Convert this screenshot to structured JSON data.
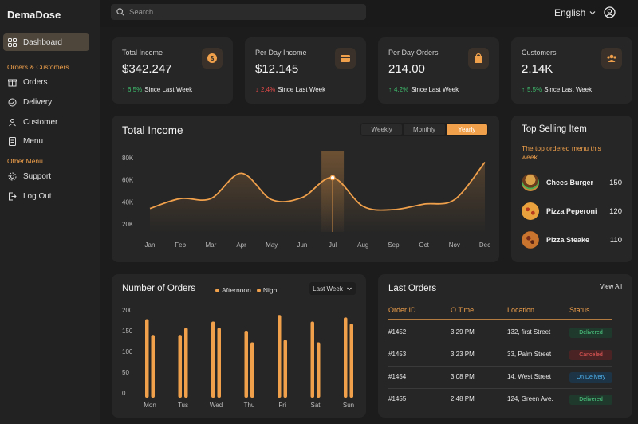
{
  "app": {
    "name": "DemaDose"
  },
  "sidebar": {
    "items": [
      {
        "label": "Dashboard",
        "icon": "grid-icon",
        "active": true
      },
      {
        "label": "Orders",
        "icon": "gift-box-icon"
      },
      {
        "label": "Delivery",
        "icon": "truck-icon"
      },
      {
        "label": "Customer",
        "icon": "users-icon"
      },
      {
        "label": "Menu",
        "icon": "document-icon"
      },
      {
        "label": "Support",
        "icon": "gear-icon"
      },
      {
        "label": "Log Out",
        "icon": "logout-icon"
      }
    ],
    "sections": {
      "orders_customers": "Orders & Customers",
      "other_menu": "Other Menu"
    }
  },
  "topbar": {
    "search_placeholder": "Search . . .",
    "language": "English"
  },
  "stats": [
    {
      "title": "Total Income",
      "value": "$342.247",
      "pct": "6.5%",
      "direction": "up",
      "since": "Since Last Week",
      "icon": "coin-icon"
    },
    {
      "title": "Per Day Income",
      "value": "$12.145",
      "pct": "2.4%",
      "direction": "down",
      "since": "Since Last Week",
      "icon": "wallet-icon"
    },
    {
      "title": "Per Day Orders",
      "value": "214.00",
      "pct": "4.2%",
      "direction": "up",
      "since": "Since Last Week",
      "icon": "shopping-bag-icon"
    },
    {
      "title": "Customers",
      "value": "2.14K",
      "pct": "5.5%",
      "direction": "up",
      "since": "Since Last Week",
      "icon": "users-icon"
    }
  ],
  "total_income": {
    "title": "Total Income",
    "tabs": [
      "Weekly",
      "Monthly",
      "Yearly"
    ],
    "active_tab": "Yearly"
  },
  "top_selling": {
    "title": "Top Selling Item",
    "subtitle": "The top ordered menu this week",
    "items": [
      {
        "name": "Chees Burger",
        "count": "150",
        "icon": "burger-icon"
      },
      {
        "name": "Pizza Peperoni",
        "count": "120",
        "icon": "pizza-icon"
      },
      {
        "name": "Pizza Steake",
        "count": "110",
        "icon": "pizza-icon"
      }
    ]
  },
  "orders_chart": {
    "title": "Number of Orders",
    "legend": [
      "Afternoon",
      "Night"
    ],
    "period": "Last Week"
  },
  "last_orders": {
    "title": "Last Orders",
    "view_all": "View All",
    "columns": [
      "Order ID",
      "O.Time",
      "Location",
      "Status"
    ],
    "rows": [
      {
        "id": "#1452",
        "time": "3:29 PM",
        "location": "132, first Street",
        "status": "Delivered"
      },
      {
        "id": "#1453",
        "time": "3:23 PM",
        "location": "33, Palm Street",
        "status": "Canceled"
      },
      {
        "id": "#1454",
        "time": "3:08 PM",
        "location": "14, West Street",
        "status": "On Delivery"
      },
      {
        "id": "#1455",
        "time": "2:48 PM",
        "location": "124, Green Ave.",
        "status": "Delivered"
      }
    ]
  },
  "colors": {
    "accent": "#f0a04b",
    "up": "#3fbf6e",
    "down": "#e84a4a",
    "bg": "#1c1c1c",
    "card": "#262626"
  },
  "chart_data": [
    {
      "type": "line",
      "title": "Total Income",
      "categories": [
        "Jan",
        "Feb",
        "Mar",
        "Apr",
        "May",
        "Jun",
        "Jul",
        "Aug",
        "Sep",
        "Oct",
        "Nov",
        "Dec"
      ],
      "series": [
        {
          "values": [
            34,
            43,
            43,
            66,
            42,
            44,
            62,
            36,
            33,
            38,
            42,
            76
          ]
        }
      ],
      "y_ticks": [
        "80K",
        "60K",
        "40K",
        "20K"
      ],
      "ylim": [
        20,
        80
      ],
      "highlight": "Jul"
    },
    {
      "type": "bar",
      "title": "Number of Orders",
      "categories": [
        "Mon",
        "Tus",
        "Wed",
        "Thu",
        "Fri",
        "Sat",
        "Sun"
      ],
      "series": [
        {
          "name": "Afternoon",
          "values": [
            178,
            140,
            172,
            150,
            188,
            172,
            182
          ]
        },
        {
          "name": "Night",
          "values": [
            140,
            157,
            157,
            122,
            128,
            122,
            167
          ]
        }
      ],
      "y_ticks": [
        "200",
        "150",
        "100",
        "50",
        "0"
      ],
      "ylim": [
        0,
        200
      ]
    }
  ]
}
